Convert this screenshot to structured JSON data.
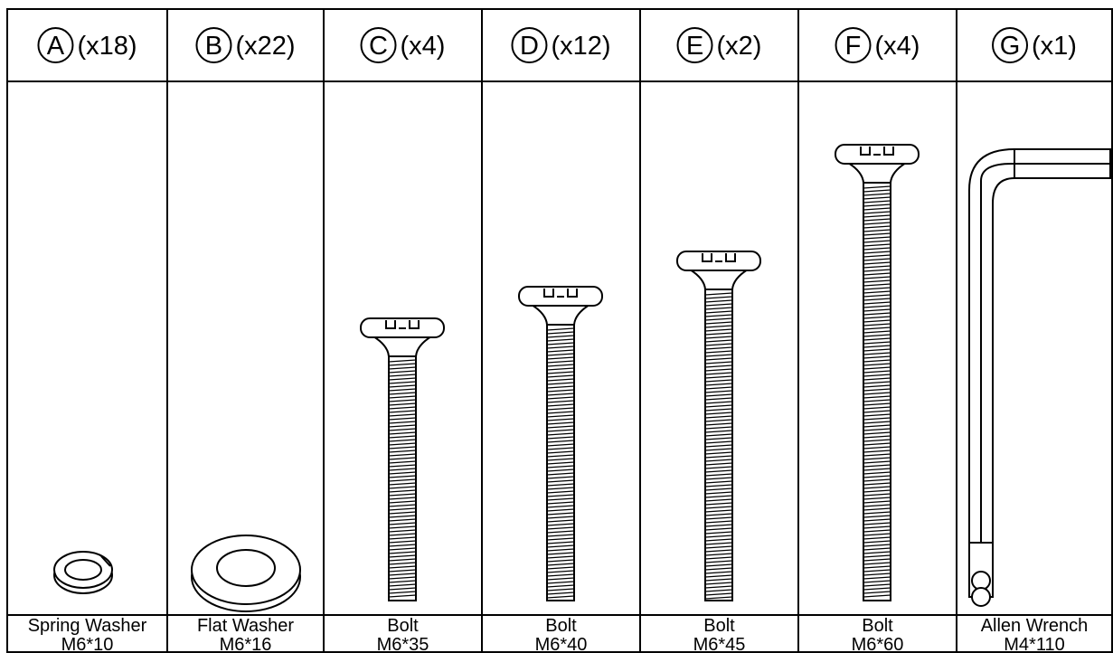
{
  "parts": [
    {
      "letter": "A",
      "quantity": "(x18)",
      "name": "Spring Washer",
      "size": "M6*10"
    },
    {
      "letter": "B",
      "quantity": "(x22)",
      "name": "Flat Washer",
      "size": "M6*16"
    },
    {
      "letter": "C",
      "quantity": "(x4)",
      "name": "Bolt",
      "size": "M6*35"
    },
    {
      "letter": "D",
      "quantity": "(x12)",
      "name": "Bolt",
      "size": "M6*40"
    },
    {
      "letter": "E",
      "quantity": "(x2)",
      "name": "Bolt",
      "size": "M6*45"
    },
    {
      "letter": "F",
      "quantity": "(x4)",
      "name": "Bolt",
      "size": "M6*60"
    },
    {
      "letter": "G",
      "quantity": "(x1)",
      "name": "Allen Wrench",
      "size": "M4*110"
    }
  ]
}
